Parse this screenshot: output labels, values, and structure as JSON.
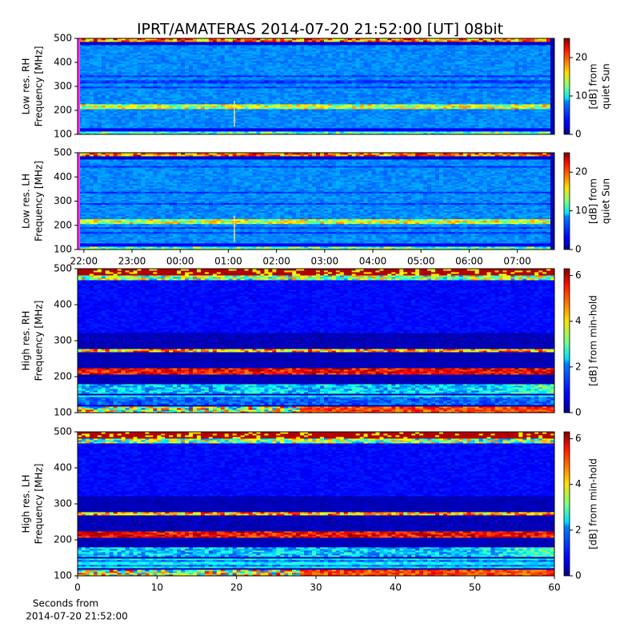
{
  "title": "IPRT/AMATERAS 2014-07-20 21:52:00 [UT]   08bit",
  "chart_data": [
    {
      "type": "heatmap",
      "profile": "low",
      "ylabel": [
        "Low res. RH",
        "Frequency [MHz]"
      ],
      "ylim": [
        100,
        500
      ],
      "yticks": [
        100,
        200,
        300,
        400,
        500
      ],
      "colorbar": {
        "label": [
          "[dB] from",
          "quiet Sun"
        ],
        "lim": [
          0,
          25
        ],
        "ticks": [
          0,
          10,
          20
        ]
      }
    },
    {
      "type": "heatmap",
      "profile": "low",
      "ylabel": [
        "Low res. LH",
        "Frequency [MHz]"
      ],
      "ylim": [
        100,
        500
      ],
      "yticks": [
        100,
        200,
        300,
        400,
        500
      ],
      "xlim": [
        21.87,
        31.77
      ],
      "xticks": [
        {
          "value": 22,
          "label": "22:00"
        },
        {
          "value": 23,
          "label": "23:00"
        },
        {
          "value": 24,
          "label": "00:00"
        },
        {
          "value": 25,
          "label": "01:00"
        },
        {
          "value": 26,
          "label": "02:00"
        },
        {
          "value": 27,
          "label": "03:00"
        },
        {
          "value": 28,
          "label": "04:00"
        },
        {
          "value": 29,
          "label": "05:00"
        },
        {
          "value": 30,
          "label": "06:00"
        },
        {
          "value": 31,
          "label": "07:00"
        }
      ],
      "colorbar": {
        "label": [
          "[dB] from",
          "quiet Sun"
        ],
        "lim": [
          0,
          25
        ],
        "ticks": [
          0,
          10,
          20
        ]
      }
    },
    {
      "type": "heatmap",
      "profile": "high",
      "ylabel": [
        "High res. RH",
        "Frequency [MHz]"
      ],
      "ylim": [
        100,
        500
      ],
      "yticks": [
        100,
        200,
        300,
        400,
        500
      ],
      "colorbar": {
        "label": [
          "[dB] from min-hold"
        ],
        "lim": [
          0,
          6.3
        ],
        "ticks": [
          0,
          2,
          4,
          6
        ]
      }
    },
    {
      "type": "heatmap",
      "profile": "high",
      "ylabel": [
        "High res. LH",
        "Frequency [MHz]"
      ],
      "ylim": [
        100,
        500
      ],
      "yticks": [
        100,
        200,
        300,
        400,
        500
      ],
      "xlim": [
        0,
        60
      ],
      "xticks": [
        0,
        10,
        20,
        30,
        40,
        50,
        60
      ],
      "xlabel": [
        "Seconds from",
        "2014-07-20 21:52:00"
      ],
      "colorbar": {
        "label": [
          "[dB] from min-hold"
        ],
        "lim": [
          0,
          6.3
        ],
        "ticks": [
          0,
          2,
          4,
          6
        ]
      }
    }
  ]
}
